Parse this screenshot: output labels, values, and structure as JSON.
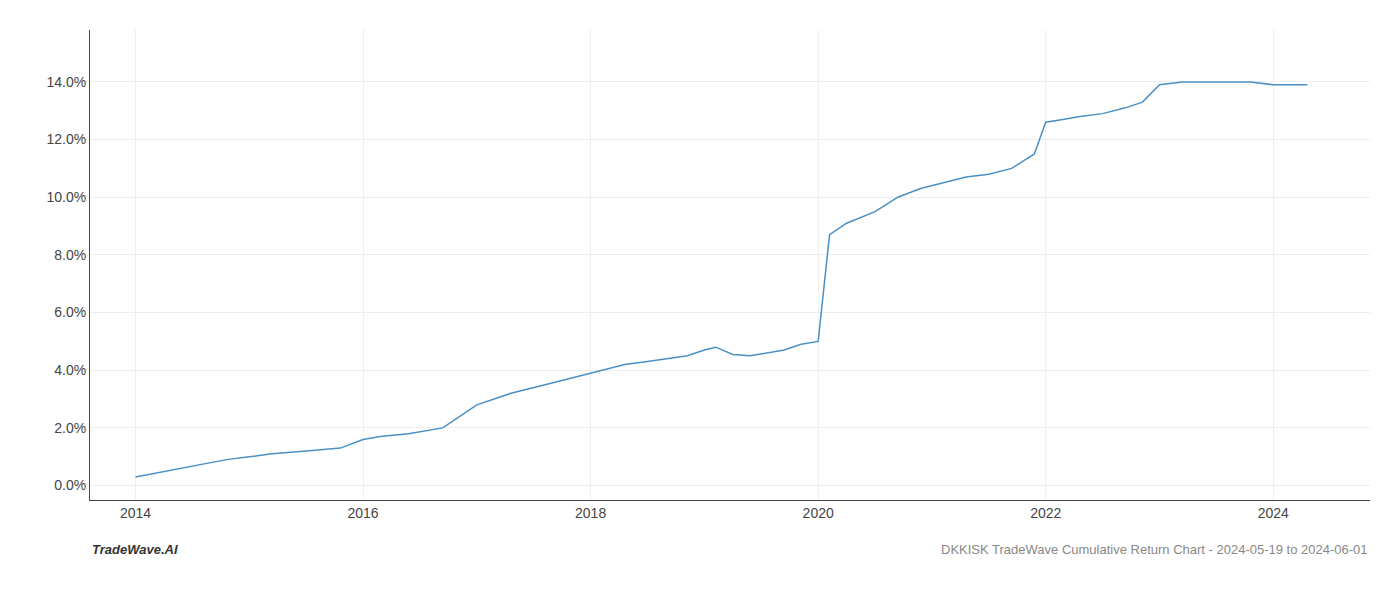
{
  "chart_data": {
    "type": "line",
    "x": [
      2014.0,
      2014.4,
      2014.8,
      2015.0,
      2015.2,
      2015.5,
      2015.8,
      2016.0,
      2016.15,
      2016.4,
      2016.7,
      2017.0,
      2017.3,
      2017.6,
      2017.9,
      2018.1,
      2018.3,
      2018.5,
      2018.7,
      2018.85,
      2019.0,
      2019.1,
      2019.25,
      2019.4,
      2019.55,
      2019.7,
      2019.85,
      2020.0,
      2020.1,
      2020.25,
      2020.5,
      2020.7,
      2020.9,
      2021.1,
      2021.3,
      2021.5,
      2021.7,
      2021.9,
      2022.0,
      2022.15,
      2022.3,
      2022.5,
      2022.7,
      2022.85,
      2023.0,
      2023.2,
      2023.4,
      2023.6,
      2023.8,
      2024.0,
      2024.3
    ],
    "values": [
      0.003,
      0.006,
      0.009,
      0.01,
      0.011,
      0.012,
      0.013,
      0.016,
      0.017,
      0.018,
      0.02,
      0.028,
      0.032,
      0.035,
      0.038,
      0.04,
      0.042,
      0.043,
      0.044,
      0.045,
      0.047,
      0.048,
      0.0455,
      0.045,
      0.046,
      0.047,
      0.049,
      0.05,
      0.087,
      0.091,
      0.095,
      0.1,
      0.103,
      0.105,
      0.107,
      0.108,
      0.11,
      0.115,
      0.126,
      0.127,
      0.128,
      0.129,
      0.131,
      0.133,
      0.139,
      0.14,
      0.14,
      0.14,
      0.14,
      0.139,
      0.139
    ],
    "color": "#4a90c4",
    "xlim": [
      2013.6,
      2024.85
    ],
    "ylim": [
      -0.005,
      0.158
    ],
    "xticks": [
      2014,
      2016,
      2018,
      2020,
      2022,
      2024
    ],
    "yticks": [
      {
        "value": 0.0,
        "label": "0.0%"
      },
      {
        "value": 0.02,
        "label": "2.0%"
      },
      {
        "value": 0.04,
        "label": "4.0%"
      },
      {
        "value": 0.06,
        "label": "6.0%"
      },
      {
        "value": 0.08,
        "label": "8.0%"
      },
      {
        "value": 0.1,
        "label": "10.0%"
      },
      {
        "value": 0.12,
        "label": "12.0%"
      },
      {
        "value": 0.14,
        "label": "14.0%"
      }
    ],
    "grid": true,
    "annotations": [
      "TradeWave.AI",
      "DKKISK TradeWave Cumulative Return Chart - 2024-05-19 to 2024-06-01"
    ]
  }
}
